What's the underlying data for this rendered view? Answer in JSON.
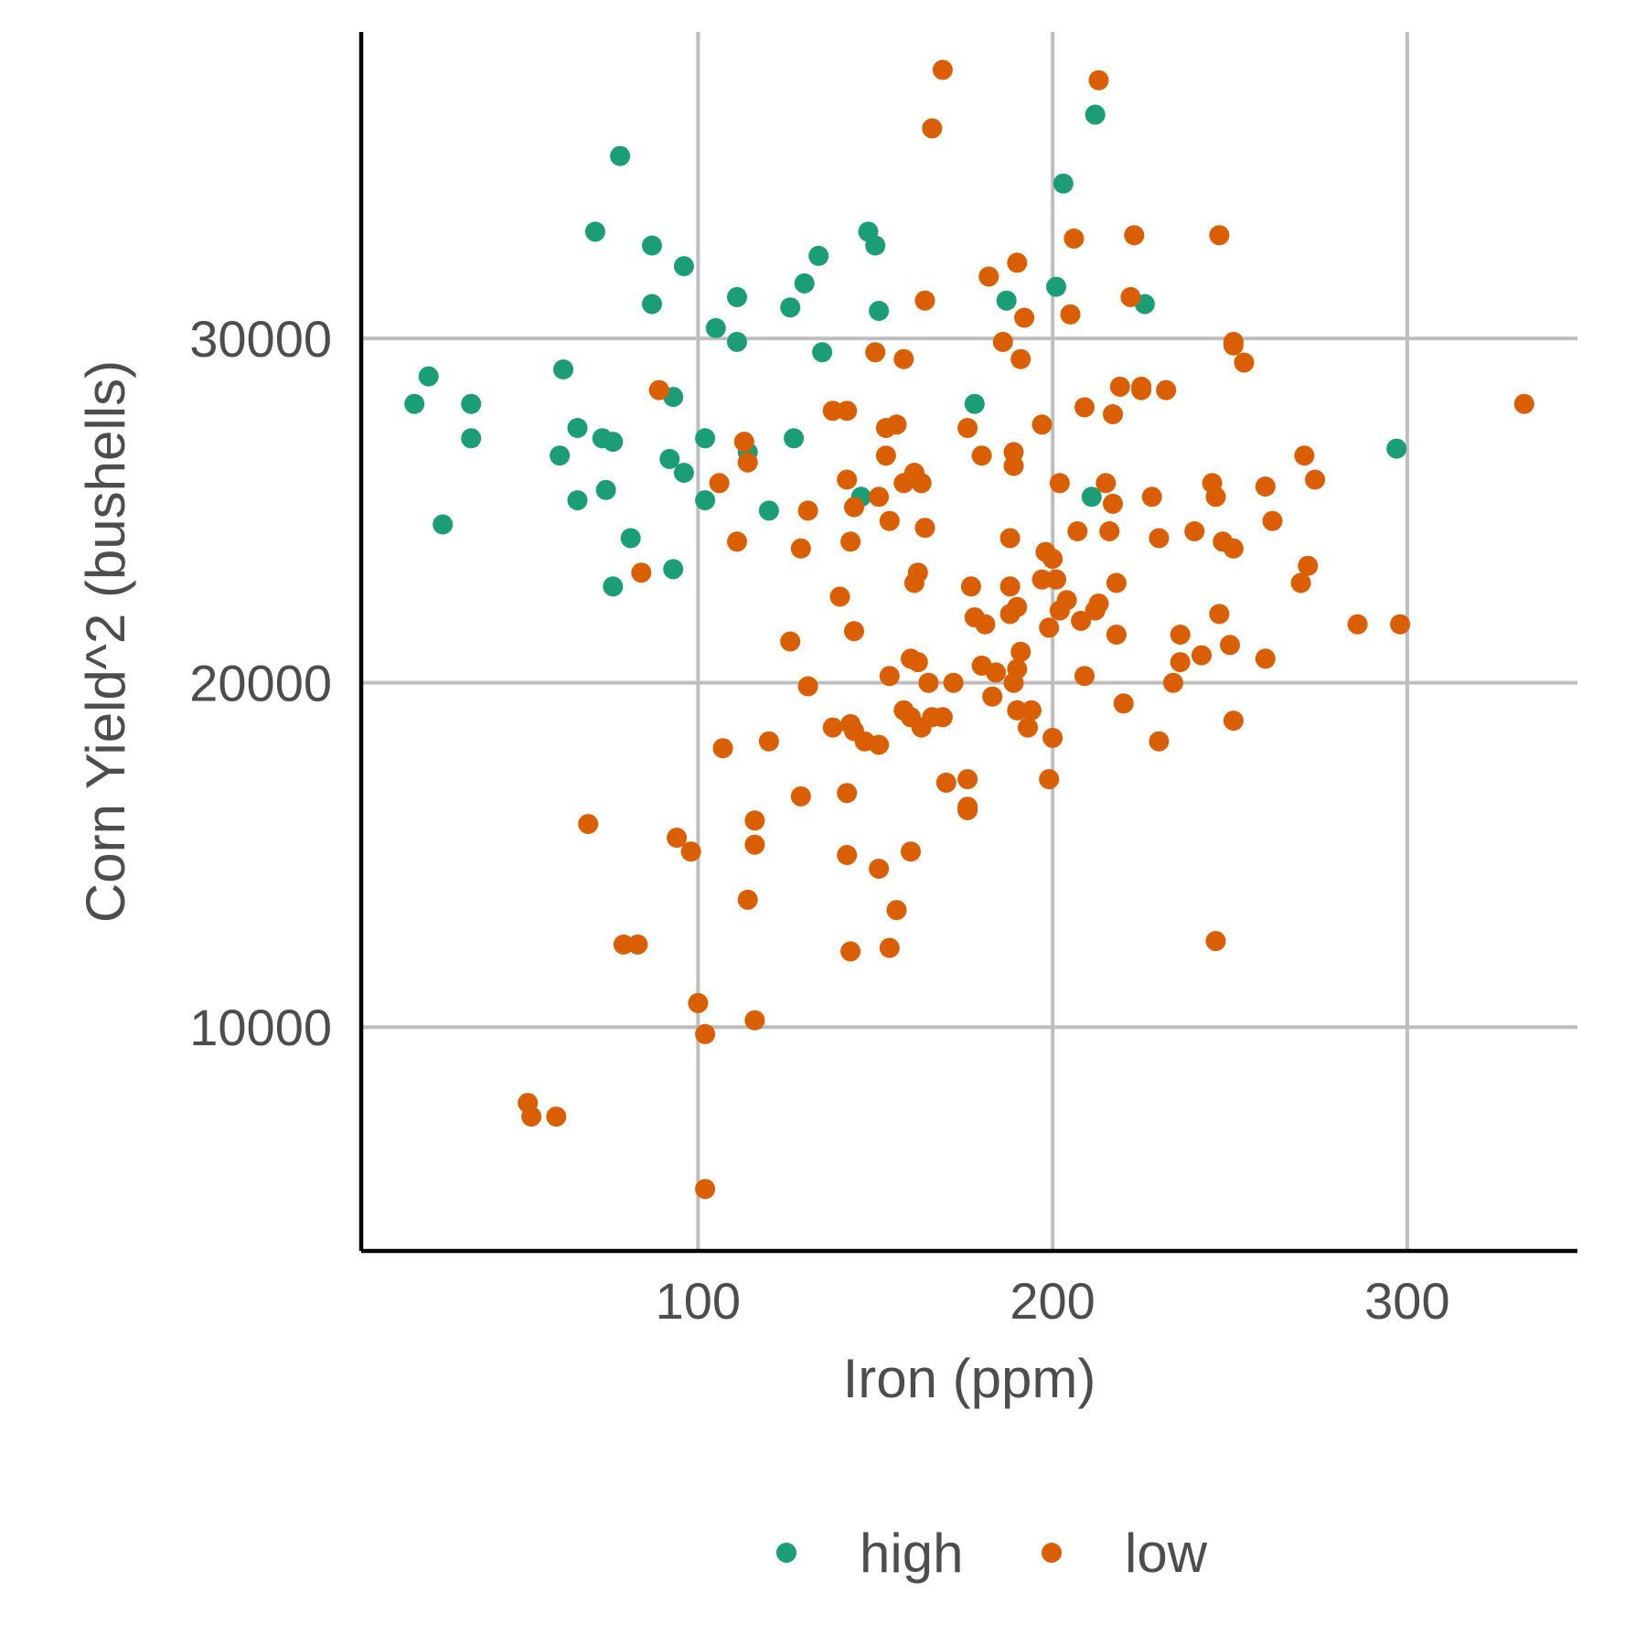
{
  "chart_data": {
    "type": "scatter",
    "title": "",
    "xlabel": "Iron (ppm)",
    "ylabel": "Corn Yield^2 (bushells)",
    "xlim": [
      5,
      348
    ],
    "ylim": [
      3500,
      38900
    ],
    "xticks": [
      100,
      200,
      300
    ],
    "yticks": [
      10000,
      20000,
      30000
    ],
    "grid": true,
    "legend": "bottom",
    "series": [
      {
        "name": "high",
        "color": "#1b9e77",
        "points": [
          [
            78,
            35300
          ],
          [
            203,
            34500
          ],
          [
            212,
            36500
          ],
          [
            71,
            33100
          ],
          [
            87,
            32700
          ],
          [
            96,
            32100
          ],
          [
            148,
            33100
          ],
          [
            150,
            32700
          ],
          [
            134,
            32400
          ],
          [
            130,
            31600
          ],
          [
            111,
            31200
          ],
          [
            126,
            30900
          ],
          [
            87,
            31000
          ],
          [
            201,
            31500
          ],
          [
            187,
            31100
          ],
          [
            226,
            31000
          ],
          [
            151,
            30800
          ],
          [
            105,
            30300
          ],
          [
            111,
            29900
          ],
          [
            135,
            29600
          ],
          [
            62,
            29100
          ],
          [
            24,
            28900
          ],
          [
            20,
            28100
          ],
          [
            36,
            28100
          ],
          [
            93,
            28300
          ],
          [
            178,
            28100
          ],
          [
            66,
            27400
          ],
          [
            73,
            27100
          ],
          [
            76,
            27000
          ],
          [
            36,
            27100
          ],
          [
            102,
            27100
          ],
          [
            127,
            27100
          ],
          [
            297,
            26800
          ],
          [
            61,
            26600
          ],
          [
            114,
            26700
          ],
          [
            92,
            26500
          ],
          [
            96,
            26100
          ],
          [
            74,
            25600
          ],
          [
            66,
            25300
          ],
          [
            102,
            25300
          ],
          [
            146,
            25400
          ],
          [
            211,
            25400
          ],
          [
            120,
            25000
          ],
          [
            28,
            24600
          ],
          [
            81,
            24200
          ],
          [
            93,
            23300
          ],
          [
            76,
            22800
          ]
        ]
      },
      {
        "name": "low",
        "color": "#d95f02",
        "points": [
          [
            169,
            37800
          ],
          [
            213,
            37500
          ],
          [
            166,
            36100
          ],
          [
            206,
            32900
          ],
          [
            223,
            33000
          ],
          [
            247,
            33000
          ],
          [
            190,
            32200
          ],
          [
            182,
            31800
          ],
          [
            164,
            31100
          ],
          [
            222,
            31200
          ],
          [
            192,
            30600
          ],
          [
            205,
            30700
          ],
          [
            186,
            29900
          ],
          [
            251,
            29900
          ],
          [
            251,
            29800
          ],
          [
            150,
            29600
          ],
          [
            158,
            29400
          ],
          [
            191,
            29400
          ],
          [
            254,
            29300
          ],
          [
            219,
            28600
          ],
          [
            225,
            28600
          ],
          [
            225,
            28500
          ],
          [
            232,
            28500
          ],
          [
            89,
            28500
          ],
          [
            138,
            27900
          ],
          [
            142,
            27900
          ],
          [
            209,
            28000
          ],
          [
            217,
            27800
          ],
          [
            333,
            28100
          ],
          [
            156,
            27500
          ],
          [
            153,
            27400
          ],
          [
            176,
            27400
          ],
          [
            197,
            27500
          ],
          [
            113,
            27000
          ],
          [
            153,
            26600
          ],
          [
            180,
            26600
          ],
          [
            189,
            26700
          ],
          [
            189,
            26300
          ],
          [
            114,
            26400
          ],
          [
            271,
            26600
          ],
          [
            161,
            26100
          ],
          [
            106,
            25800
          ],
          [
            142,
            25900
          ],
          [
            158,
            25800
          ],
          [
            163,
            25800
          ],
          [
            202,
            25800
          ],
          [
            215,
            25800
          ],
          [
            245,
            25800
          ],
          [
            260,
            25700
          ],
          [
            274,
            25900
          ],
          [
            151,
            25400
          ],
          [
            228,
            25400
          ],
          [
            246,
            25400
          ],
          [
            144,
            25100
          ],
          [
            217,
            25200
          ],
          [
            131,
            25000
          ],
          [
            154,
            24700
          ],
          [
            262,
            24700
          ],
          [
            164,
            24500
          ],
          [
            207,
            24400
          ],
          [
            216,
            24400
          ],
          [
            240,
            24400
          ],
          [
            188,
            24200
          ],
          [
            230,
            24200
          ],
          [
            111,
            24100
          ],
          [
            143,
            24100
          ],
          [
            248,
            24100
          ],
          [
            251,
            23900
          ],
          [
            129,
            23900
          ],
          [
            198,
            23800
          ],
          [
            200,
            23600
          ],
          [
            272,
            23400
          ],
          [
            84,
            23200
          ],
          [
            162,
            23200
          ],
          [
            161,
            22900
          ],
          [
            197,
            23000
          ],
          [
            201,
            23000
          ],
          [
            218,
            22900
          ],
          [
            270,
            22900
          ],
          [
            177,
            22800
          ],
          [
            188,
            22800
          ],
          [
            140,
            22500
          ],
          [
            204,
            22400
          ],
          [
            213,
            22300
          ],
          [
            190,
            22200
          ],
          [
            212,
            22100
          ],
          [
            188,
            22000
          ],
          [
            202,
            22100
          ],
          [
            247,
            22000
          ],
          [
            178,
            21900
          ],
          [
            208,
            21800
          ],
          [
            181,
            21700
          ],
          [
            199,
            21600
          ],
          [
            286,
            21700
          ],
          [
            298,
            21700
          ],
          [
            144,
            21500
          ],
          [
            218,
            21400
          ],
          [
            236,
            21400
          ],
          [
            126,
            21200
          ],
          [
            250,
            21100
          ],
          [
            191,
            20900
          ],
          [
            242,
            20800
          ],
          [
            260,
            20700
          ],
          [
            236,
            20600
          ],
          [
            160,
            20700
          ],
          [
            180,
            20500
          ],
          [
            162,
            20600
          ],
          [
            190,
            20400
          ],
          [
            184,
            20300
          ],
          [
            209,
            20200
          ],
          [
            154,
            20200
          ],
          [
            165,
            20000
          ],
          [
            172,
            20000
          ],
          [
            189,
            20000
          ],
          [
            234,
            20000
          ],
          [
            131,
            19900
          ],
          [
            183,
            19600
          ],
          [
            220,
            19400
          ],
          [
            158,
            19200
          ],
          [
            190,
            19200
          ],
          [
            194,
            19200
          ],
          [
            166,
            19000
          ],
          [
            160,
            19000
          ],
          [
            169,
            19000
          ],
          [
            251,
            18900
          ],
          [
            143,
            18800
          ],
          [
            138,
            18700
          ],
          [
            144,
            18600
          ],
          [
            163,
            18700
          ],
          [
            193,
            18700
          ],
          [
            200,
            18400
          ],
          [
            147,
            18300
          ],
          [
            151,
            18200
          ],
          [
            120,
            18300
          ],
          [
            230,
            18300
          ],
          [
            107,
            18100
          ],
          [
            170,
            17100
          ],
          [
            176,
            17200
          ],
          [
            199,
            17200
          ],
          [
            129,
            16700
          ],
          [
            142,
            16800
          ],
          [
            176,
            16400
          ],
          [
            176,
            16300
          ],
          [
            69,
            15900
          ],
          [
            116,
            16000
          ],
          [
            94,
            15500
          ],
          [
            98,
            15100
          ],
          [
            116,
            15300
          ],
          [
            142,
            15000
          ],
          [
            160,
            15100
          ],
          [
            151,
            14600
          ],
          [
            114,
            13700
          ],
          [
            156,
            13400
          ],
          [
            79,
            12400
          ],
          [
            83,
            12400
          ],
          [
            246,
            12500
          ],
          [
            143,
            12200
          ],
          [
            154,
            12300
          ],
          [
            100,
            10700
          ],
          [
            102,
            9800
          ],
          [
            116,
            10200
          ],
          [
            52,
            7800
          ],
          [
            53,
            7400
          ],
          [
            60,
            7400
          ],
          [
            102,
            5300
          ]
        ]
      }
    ]
  }
}
